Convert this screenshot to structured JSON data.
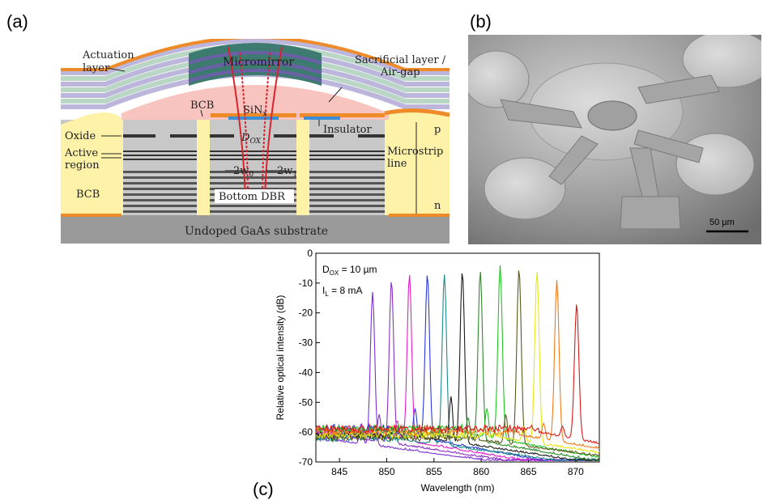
{
  "panels": {
    "a": "(a)",
    "b": "(b)",
    "c": "(c)"
  },
  "schematic": {
    "actuation_layer": [
      "Actuation",
      "layer"
    ],
    "micromirror": "Micromirror",
    "sacrificial": [
      "Sacrificial layer /",
      "Air-gap"
    ],
    "bcb_top": "BCB",
    "sinx": "SiN",
    "sinx_sub": "x",
    "insulator": "Insulator",
    "p": "p",
    "oxide": "Oxide",
    "dox": "D",
    "dox_sub": "OX",
    "active": [
      "Active",
      "region"
    ],
    "w0": "2w",
    "w0_sub": "0",
    "w1": "2w",
    "w1_sub": "1",
    "microstrip": [
      "Microstrip",
      "line"
    ],
    "bcb_left": "BCB",
    "bottom_dbr": "Bottom DBR",
    "n": "n",
    "substrate": "Undoped GaAs substrate"
  },
  "sem": {
    "scalebar": "50 µm"
  },
  "colors": {
    "orange": "#ef8a28",
    "mirror_green": "#3d7a70",
    "mirror_purple": "#6b5fa8",
    "dbr_green": "#b9d7c4",
    "dbr_violet": "#bdb6dc",
    "airgap_pink": "#f8c4c0",
    "bcb_yellow": "#fdf2a8",
    "gray": "#c8c8c8",
    "dark": "#333333",
    "sinx_blue": "#3a8ed6",
    "ray_red": "#d8242e"
  },
  "chart_data": {
    "type": "line",
    "title": "",
    "xlabel": "Wavelength (nm)",
    "ylabel": "Relative optical intensity (dB)",
    "xlim": [
      842.5,
      872.5
    ],
    "ylim": [
      -70,
      0
    ],
    "xticks": [
      845,
      850,
      855,
      860,
      865,
      870
    ],
    "yticks": [
      0,
      -10,
      -20,
      -30,
      -40,
      -50,
      -60,
      -70
    ],
    "annotations": [
      {
        "text": "D",
        "sub": "OX",
        "rest": " = 10 µm"
      },
      {
        "text": "I",
        "sub": "L",
        "rest": " = 8 mA"
      }
    ],
    "series": [
      {
        "color": "#7b2fd6",
        "peak_x": 848.5,
        "peak_y": -13,
        "side_x": 847.3,
        "side_y": -57
      },
      {
        "color": "#8a2fc4",
        "peak_x": 850.5,
        "peak_y": -9,
        "side_x": 849.2,
        "side_y": -54
      },
      {
        "color": "#e21ec7",
        "peak_x": 852.4,
        "peak_y": -7,
        "side_x": 851.1,
        "side_y": -56
      },
      {
        "color": "#2a39d8",
        "peak_x": 854.3,
        "peak_y": -7,
        "side_x": 853.0,
        "side_y": -52
      },
      {
        "color": "#1a8a8a",
        "peak_x": 856.1,
        "peak_y": -7,
        "side_x": 854.9,
        "side_y": -58
      },
      {
        "color": "#1a1a1a",
        "peak_x": 858.0,
        "peak_y": -6,
        "side_x": 856.8,
        "side_y": -48
      },
      {
        "color": "#2a8a2a",
        "peak_x": 859.9,
        "peak_y": -6,
        "side_x": 858.6,
        "side_y": -55
      },
      {
        "color": "#22c422",
        "peak_x": 862.0,
        "peak_y": -4,
        "side_x": 860.6,
        "side_y": -52
      },
      {
        "color": "#5a5a1a",
        "peak_x": 864.0,
        "peak_y": -5,
        "side_x": 862.6,
        "side_y": -54
      },
      {
        "color": "#e6e61a",
        "peak_x": 865.9,
        "peak_y": -6,
        "side_x": 864.5,
        "side_y": -58
      },
      {
        "color": "#f07a1a",
        "peak_x": 868.0,
        "peak_y": -9,
        "side_x": 866.6,
        "side_y": -57
      },
      {
        "color": "#d81a1a",
        "peak_x": 870.1,
        "peak_y": -17,
        "side_x": 868.6,
        "side_y": -58
      }
    ]
  }
}
